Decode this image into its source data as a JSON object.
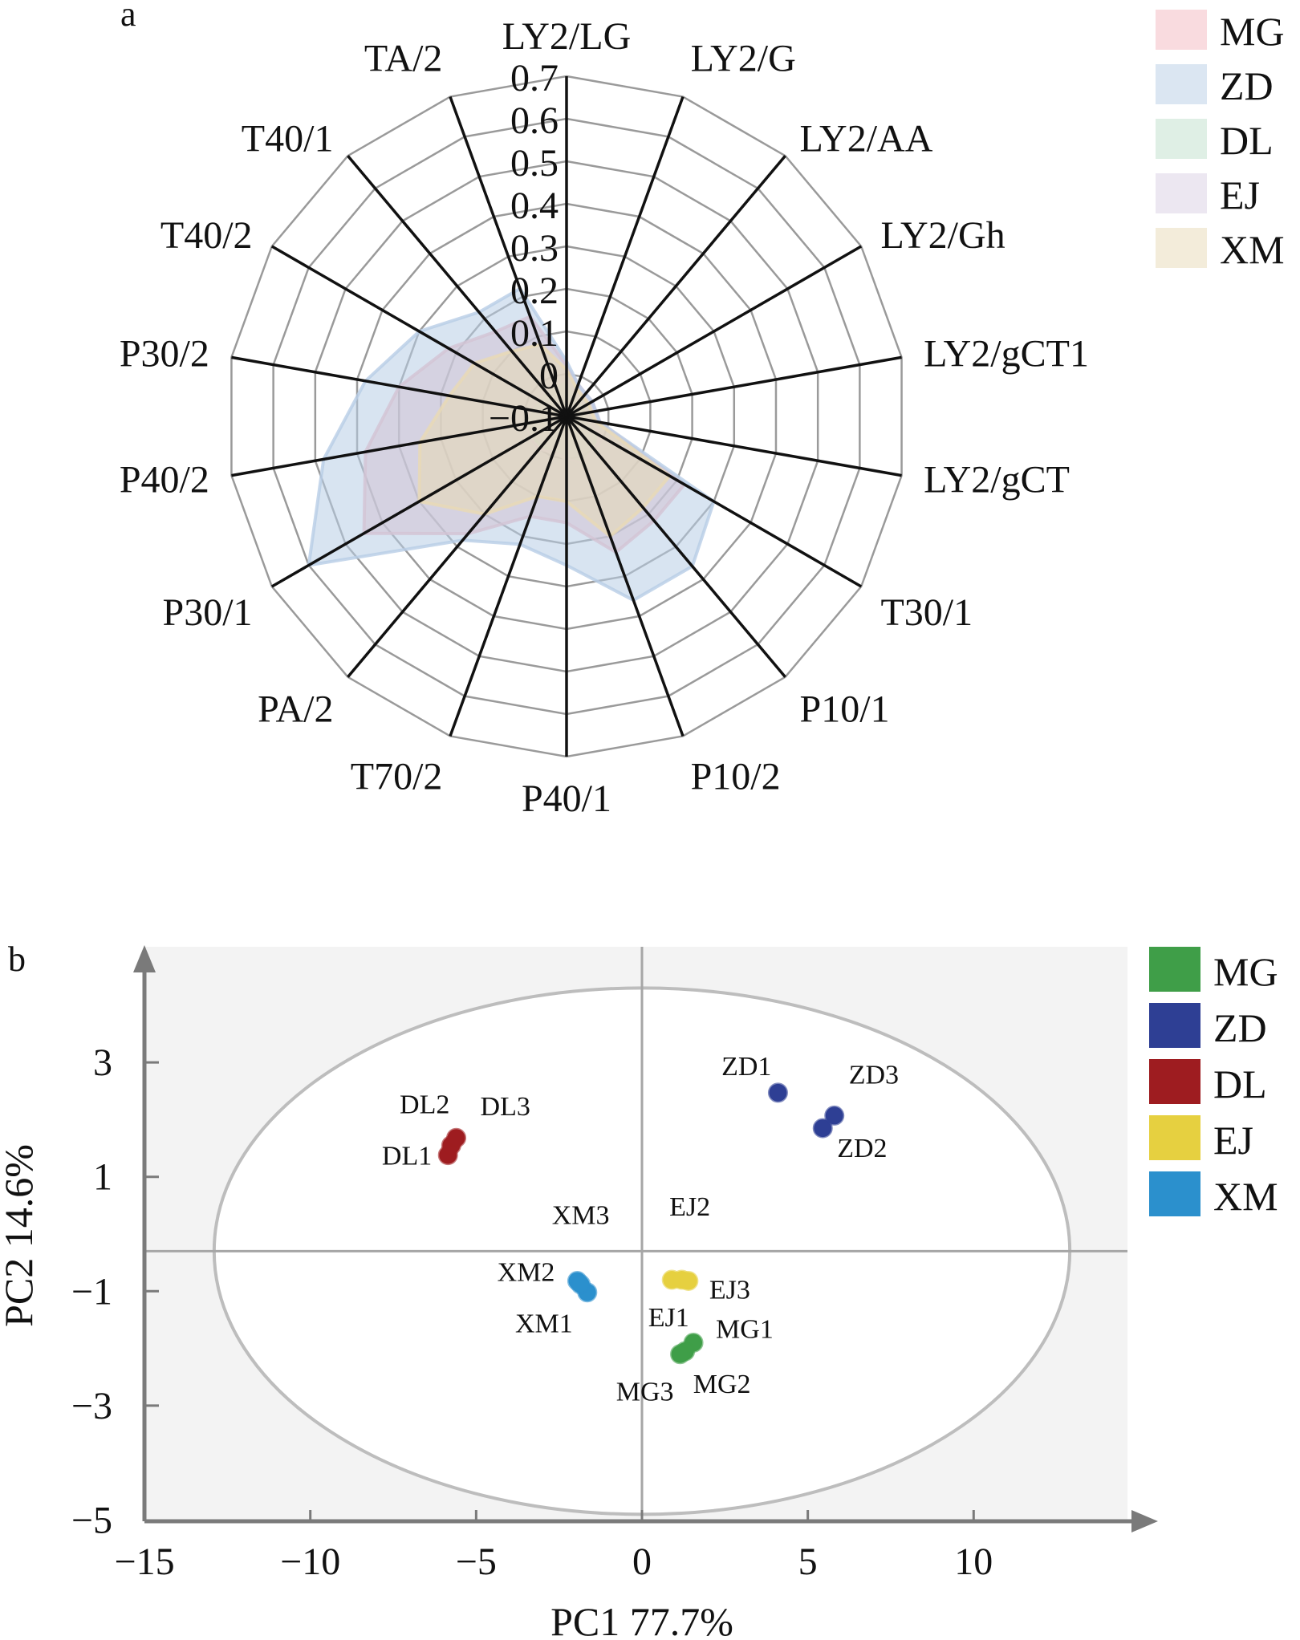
{
  "chart_data": [
    {
      "type": "radar",
      "panel_label": "a",
      "axes": [
        "LY2/LG",
        "LY2/G",
        "LY2/AA",
        "LY2/Gh",
        "LY2/gCT1",
        "LY2/gCT",
        "T30/1",
        "P10/1",
        "P10/2",
        "P40/1",
        "T70/2",
        "PA/2",
        "P30/1",
        "P40/2",
        "P30/2",
        "T40/2",
        "T40/1",
        "TA/2"
      ],
      "rlim": [
        -0.1,
        0.7
      ],
      "ticks": [
        "0.7",
        "0.6",
        "0.5",
        "0.4",
        "0.3",
        "0.2",
        "0.1",
        "0",
        "−0.1"
      ],
      "tick_values": [
        0.7,
        0.6,
        0.5,
        0.4,
        0.3,
        0.2,
        0.1,
        0,
        -0.1
      ],
      "legend_position": "top-right",
      "series": [
        {
          "name": "MG",
          "color": "#f4b8bf",
          "values": [
            0.02,
            -0.02,
            -0.03,
            -0.03,
            -0.03,
            -0.02,
            0.22,
            0.22,
            0.24,
            0.15,
            0.15,
            0.26,
            0.45,
            0.38,
            0.3,
            0.22,
            0.16,
            0.15
          ]
        },
        {
          "name": "ZD",
          "color": "#b8cde6",
          "values": [
            0.03,
            -0.02,
            -0.03,
            -0.03,
            -0.03,
            -0.02,
            0.3,
            0.36,
            0.36,
            0.25,
            0.22,
            0.28,
            0.6,
            0.48,
            0.38,
            0.3,
            0.22,
            0.22
          ]
        },
        {
          "name": "DL",
          "color": "#bfe0cc",
          "values": [
            -0.01,
            -0.04,
            -0.05,
            -0.05,
            -0.05,
            -0.05,
            -0.02,
            0.0,
            0.02,
            0.0,
            -0.01,
            -0.01,
            0.0,
            0.0,
            -0.01,
            -0.02,
            -0.02,
            -0.02
          ]
        },
        {
          "name": "EJ",
          "color": "#d9cfe3",
          "values": [
            -0.01,
            -0.04,
            -0.05,
            -0.05,
            -0.05,
            -0.05,
            0.0,
            0.0,
            0.02,
            0.0,
            -0.01,
            0.0,
            0.0,
            0.0,
            -0.01,
            -0.02,
            -0.02,
            -0.02
          ]
        },
        {
          "name": "XM",
          "color": "#e8d9b5",
          "values": [
            0.01,
            -0.03,
            -0.04,
            -0.04,
            -0.04,
            -0.03,
            0.18,
            0.18,
            0.2,
            0.1,
            0.1,
            0.2,
            0.3,
            0.25,
            0.18,
            0.15,
            0.1,
            0.08
          ]
        }
      ]
    },
    {
      "type": "scatter",
      "panel_label": "b",
      "xlabel": "PC1 77.7%",
      "ylabel": "PC2 14.6%",
      "xlim": [
        -15,
        14.5
      ],
      "ylim": [
        -5,
        5
      ],
      "xticks": [
        -15,
        -10,
        -5,
        0,
        5,
        10
      ],
      "xtick_labels": [
        "−15",
        "−10",
        "−5",
        "0",
        "5",
        "10"
      ],
      "yticks": [
        3,
        1,
        -1,
        -3,
        -5
      ],
      "ytick_labels": [
        "3",
        "1",
        "−1",
        "−3",
        "−5"
      ],
      "reference_lines": {
        "x": 0,
        "y": -0.3
      },
      "ellipse": {
        "cx": 0,
        "cy": -0.3,
        "rx": 12.9,
        "ry": 4.6
      },
      "legend_position": "right",
      "series": [
        {
          "name": "MG",
          "color": "#3f9e48",
          "points": [
            {
              "label": "MG1",
              "x": 1.55,
              "y": -1.9
            },
            {
              "label": "MG2",
              "x": 1.3,
              "y": -2.05
            },
            {
              "label": "MG3",
              "x": 1.15,
              "y": -2.1
            }
          ]
        },
        {
          "name": "ZD",
          "color": "#2e3f94",
          "points": [
            {
              "label": "ZD1",
              "x": 4.1,
              "y": 2.47
            },
            {
              "label": "ZD2",
              "x": 5.45,
              "y": 1.85
            },
            {
              "label": "ZD3",
              "x": 5.8,
              "y": 2.07
            }
          ]
        },
        {
          "name": "DL",
          "color": "#9e1c20",
          "points": [
            {
              "label": "DL1",
              "x": -5.85,
              "y": 1.38
            },
            {
              "label": "DL2",
              "x": -5.75,
              "y": 1.55
            },
            {
              "label": "DL3",
              "x": -5.6,
              "y": 1.68
            }
          ]
        },
        {
          "name": "EJ",
          "color": "#e6d040",
          "points": [
            {
              "label": "EJ1",
              "x": 0.9,
              "y": -0.8
            },
            {
              "label": "EJ2",
              "x": 1.2,
              "y": -0.8
            },
            {
              "label": "EJ3",
              "x": 1.4,
              "y": -0.82
            }
          ]
        },
        {
          "name": "XM",
          "color": "#2b90cd",
          "points": [
            {
              "label": "XM1",
              "x": -1.65,
              "y": -1.02
            },
            {
              "label": "XM2",
              "x": -1.95,
              "y": -0.82
            },
            {
              "label": "XM3",
              "x": -1.85,
              "y": -0.88
            }
          ]
        }
      ]
    }
  ]
}
